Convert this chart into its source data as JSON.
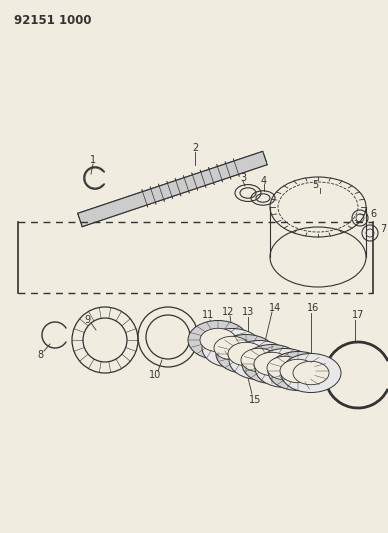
{
  "title": "92151 1000",
  "bg": "#f0ece0",
  "lc": "#333333",
  "fig_w": 3.88,
  "fig_h": 5.33,
  "dpi": 100
}
